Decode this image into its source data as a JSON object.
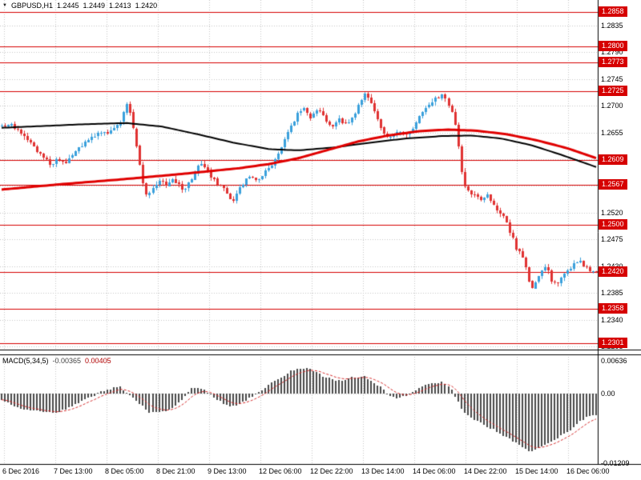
{
  "legend": {
    "symbol": "GBPUSD,H1",
    "open": "1.2445",
    "high": "1.2449",
    "low": "1.2413",
    "close": "1.2420"
  },
  "macd_panel": {
    "title": "MACD(5,34,5)",
    "value_main": "-0.00365",
    "value_signal": "0.00405",
    "axis_ticks": [
      {
        "label": "0.00636",
        "value": 0.00636
      },
      {
        "label": "0.00",
        "value": 0
      },
      {
        "label": "-0.01209",
        "value": -0.01209
      }
    ]
  },
  "price_axis": {
    "ticks": [
      1.2835,
      1.279,
      1.2745,
      1.27,
      1.2655,
      1.261,
      1.2565,
      1.252,
      1.2475,
      1.243,
      1.2385,
      1.234,
      1.2295
    ]
  },
  "time_axis": {
    "labels": [
      "6 Dec 2016",
      "7 Dec 13:00",
      "8 Dec 05:00",
      "8 Dec 21:00",
      "9 Dec 13:00",
      "12 Dec 06:00",
      "12 Dec 22:00",
      "13 Dec 14:00",
      "14 Dec 06:00",
      "14 Dec 22:00",
      "15 Dec 14:00",
      "16 Dec 06:00"
    ]
  },
  "colors": {
    "bull": "#3aa0dc",
    "bear": "#e03232",
    "ma_black": "#000000",
    "ma_red": "#e00000",
    "level_line": "#d60000",
    "badge_bg": "#d60000",
    "grid": "#c6c6c6",
    "frame": "#000000",
    "macd_bar": "#4a4a4a",
    "macd_signal": "#d62b2b"
  },
  "chart_data": {
    "type": "candlestick",
    "symbol": "GBPUSD",
    "timeframe": "H1",
    "title": "GBPUSD,H1",
    "candle_count": 186,
    "y_axis": {
      "min": 1.22896,
      "max": 1.28781
    },
    "horizontal_levels": [
      1.2858,
      1.28,
      1.2773,
      1.2725,
      1.2609,
      1.2567,
      1.25,
      1.2358,
      1.2301
    ],
    "current_price": 1.242,
    "price_path": [
      [
        0.0,
        1.2665
      ],
      [
        0.015,
        1.2668
      ],
      [
        0.03,
        1.2655
      ],
      [
        0.045,
        1.2642
      ],
      [
        0.06,
        1.2625
      ],
      [
        0.075,
        1.2608
      ],
      [
        0.085,
        1.2598
      ],
      [
        0.095,
        1.2612
      ],
      [
        0.105,
        1.2603
      ],
      [
        0.115,
        1.2615
      ],
      [
        0.13,
        1.2628
      ],
      [
        0.145,
        1.2641
      ],
      [
        0.16,
        1.2652
      ],
      [
        0.175,
        1.2655
      ],
      [
        0.19,
        1.2661
      ],
      [
        0.2,
        1.2672
      ],
      [
        0.208,
        1.2701
      ],
      [
        0.213,
        1.2708
      ],
      [
        0.218,
        1.2678
      ],
      [
        0.226,
        1.2642
      ],
      [
        0.233,
        1.2598
      ],
      [
        0.239,
        1.256
      ],
      [
        0.246,
        1.2548
      ],
      [
        0.256,
        1.2563
      ],
      [
        0.266,
        1.2572
      ],
      [
        0.276,
        1.2566
      ],
      [
        0.286,
        1.2578
      ],
      [
        0.296,
        1.257
      ],
      [
        0.306,
        1.2558
      ],
      [
        0.316,
        1.2572
      ],
      [
        0.326,
        1.2591
      ],
      [
        0.333,
        1.2605
      ],
      [
        0.341,
        1.2597
      ],
      [
        0.351,
        1.2582
      ],
      [
        0.361,
        1.257
      ],
      [
        0.371,
        1.2562
      ],
      [
        0.381,
        1.2548
      ],
      [
        0.389,
        1.2538
      ],
      [
        0.397,
        1.2556
      ],
      [
        0.407,
        1.2571
      ],
      [
        0.417,
        1.258
      ],
      [
        0.427,
        1.2572
      ],
      [
        0.437,
        1.2583
      ],
      [
        0.447,
        1.2592
      ],
      [
        0.457,
        1.2606
      ],
      [
        0.467,
        1.2624
      ],
      [
        0.477,
        1.2647
      ],
      [
        0.487,
        1.2665
      ],
      [
        0.497,
        1.2687
      ],
      [
        0.507,
        1.2696
      ],
      [
        0.517,
        1.2679
      ],
      [
        0.527,
        1.2689
      ],
      [
        0.537,
        1.2692
      ],
      [
        0.547,
        1.2673
      ],
      [
        0.557,
        1.2666
      ],
      [
        0.567,
        1.2679
      ],
      [
        0.577,
        1.2669
      ],
      [
        0.587,
        1.2673
      ],
      [
        0.597,
        1.2694
      ],
      [
        0.607,
        1.2714
      ],
      [
        0.613,
        1.2722
      ],
      [
        0.621,
        1.2704
      ],
      [
        0.631,
        1.2681
      ],
      [
        0.641,
        1.2653
      ],
      [
        0.651,
        1.2643
      ],
      [
        0.661,
        1.2651
      ],
      [
        0.671,
        1.2656
      ],
      [
        0.681,
        1.2652
      ],
      [
        0.691,
        1.2661
      ],
      [
        0.701,
        1.2679
      ],
      [
        0.711,
        1.2693
      ],
      [
        0.721,
        1.2703
      ],
      [
        0.731,
        1.2713
      ],
      [
        0.741,
        1.2718
      ],
      [
        0.751,
        1.2704
      ],
      [
        0.759,
        1.2681
      ],
      [
        0.766,
        1.2648
      ],
      [
        0.773,
        1.2589
      ],
      [
        0.779,
        1.2562
      ],
      [
        0.786,
        1.2556
      ],
      [
        0.796,
        1.2549
      ],
      [
        0.806,
        1.2543
      ],
      [
        0.816,
        1.2549
      ],
      [
        0.826,
        1.2531
      ],
      [
        0.836,
        1.2523
      ],
      [
        0.846,
        1.2509
      ],
      [
        0.856,
        1.2483
      ],
      [
        0.866,
        1.2459
      ],
      [
        0.876,
        1.2443
      ],
      [
        0.886,
        1.2409
      ],
      [
        0.893,
        1.2389
      ],
      [
        0.901,
        1.2413
      ],
      [
        0.911,
        1.2429
      ],
      [
        0.919,
        1.2421
      ],
      [
        0.927,
        1.2399
      ],
      [
        0.935,
        1.2403
      ],
      [
        0.943,
        1.2413
      ],
      [
        0.951,
        1.2423
      ],
      [
        0.961,
        1.2433
      ],
      [
        0.971,
        1.2439
      ],
      [
        0.981,
        1.2429
      ],
      [
        0.991,
        1.2422
      ],
      [
        1.0,
        1.242
      ]
    ],
    "ma_slow_black": [
      [
        0,
        1.2663
      ],
      [
        0.07,
        1.2666
      ],
      [
        0.14,
        1.2669
      ],
      [
        0.21,
        1.2671
      ],
      [
        0.27,
        1.2665
      ],
      [
        0.33,
        1.2652
      ],
      [
        0.39,
        1.2638
      ],
      [
        0.45,
        1.2627
      ],
      [
        0.5,
        1.2625
      ],
      [
        0.56,
        1.263
      ],
      [
        0.62,
        1.2638
      ],
      [
        0.68,
        1.2645
      ],
      [
        0.74,
        1.2649
      ],
      [
        0.79,
        1.265
      ],
      [
        0.84,
        1.2645
      ],
      [
        0.89,
        1.2634
      ],
      [
        0.94,
        1.2618
      ],
      [
        1.0,
        1.2597
      ]
    ],
    "ma_fast_red": [
      [
        0,
        1.2559
      ],
      [
        0.1,
        1.2568
      ],
      [
        0.2,
        1.2576
      ],
      [
        0.3,
        1.2585
      ],
      [
        0.4,
        1.2595
      ],
      [
        0.45,
        1.2602
      ],
      [
        0.5,
        1.2612
      ],
      [
        0.55,
        1.2626
      ],
      [
        0.6,
        1.264
      ],
      [
        0.65,
        1.265
      ],
      [
        0.7,
        1.2657
      ],
      [
        0.75,
        1.266
      ],
      [
        0.8,
        1.2658
      ],
      [
        0.85,
        1.2652
      ],
      [
        0.9,
        1.2642
      ],
      [
        0.95,
        1.2629
      ],
      [
        1.0,
        1.2612
      ]
    ],
    "macd": {
      "y_max": 0.00681,
      "y_min": -0.01223,
      "signal_alpha": 0.25,
      "path": [
        [
          0.0,
          -0.0012
        ],
        [
          0.04,
          -0.0028
        ],
        [
          0.09,
          -0.0034
        ],
        [
          0.13,
          -0.0016
        ],
        [
          0.17,
          0.0004
        ],
        [
          0.2,
          0.0012
        ],
        [
          0.225,
          -0.001
        ],
        [
          0.25,
          -0.0033
        ],
        [
          0.28,
          -0.003
        ],
        [
          0.3,
          -0.0013
        ],
        [
          0.32,
          0.0009
        ],
        [
          0.34,
          0.0007
        ],
        [
          0.36,
          -0.001
        ],
        [
          0.385,
          -0.0023
        ],
        [
          0.41,
          -0.0013
        ],
        [
          0.43,
          0.0002
        ],
        [
          0.46,
          0.0022
        ],
        [
          0.49,
          0.0041
        ],
        [
          0.515,
          0.0045
        ],
        [
          0.54,
          0.0031
        ],
        [
          0.565,
          0.0022
        ],
        [
          0.59,
          0.0028
        ],
        [
          0.61,
          0.003
        ],
        [
          0.635,
          0.0013
        ],
        [
          0.66,
          -0.0008
        ],
        [
          0.68,
          -0.0004
        ],
        [
          0.7,
          0.0008
        ],
        [
          0.72,
          0.0018
        ],
        [
          0.74,
          0.002
        ],
        [
          0.755,
          0.001
        ],
        [
          0.775,
          -0.003
        ],
        [
          0.8,
          -0.0049
        ],
        [
          0.825,
          -0.0061
        ],
        [
          0.85,
          -0.0076
        ],
        [
          0.875,
          -0.0092
        ],
        [
          0.89,
          -0.0102
        ],
        [
          0.91,
          -0.009
        ],
        [
          0.93,
          -0.0081
        ],
        [
          0.95,
          -0.0068
        ],
        [
          0.97,
          -0.0051
        ],
        [
          0.99,
          -0.0037
        ]
      ]
    },
    "noise": {
      "seed": 20161216,
      "body": 0.0003,
      "wick": 0.0006
    }
  }
}
